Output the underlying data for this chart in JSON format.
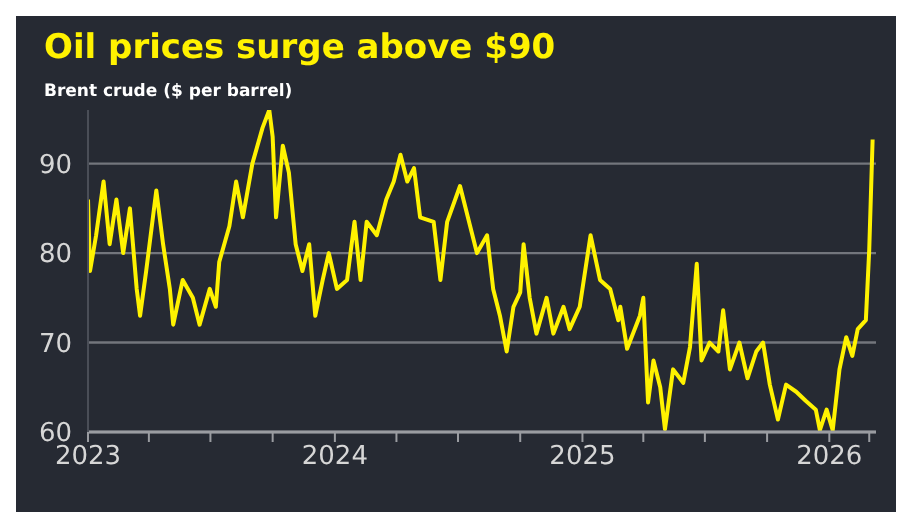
{
  "chart_data": {
    "type": "line",
    "title": "Oil prices surge above $90",
    "subtitle": "Brent crude ($ per barrel)",
    "x": [
      "2023-01-01",
      "2023-01-04",
      "2023-01-13",
      "2023-01-24",
      "2023-02-02",
      "2023-02-12",
      "2023-02-22",
      "2023-03-04",
      "2023-03-14",
      "2023-03-19",
      "2023-03-28",
      "2023-04-07",
      "2023-04-12",
      "2023-04-22",
      "2023-05-02",
      "2023-05-07",
      "2023-05-21",
      "2023-06-05",
      "2023-06-15",
      "2023-06-30",
      "2023-07-09",
      "2023-07-14",
      "2023-07-29",
      "2023-08-08",
      "2023-08-18",
      "2023-09-01",
      "2023-09-16",
      "2023-09-26",
      "2023-10-01",
      "2023-10-06",
      "2023-10-16",
      "2023-10-25",
      "2023-11-04",
      "2023-11-14",
      "2023-11-24",
      "2023-12-03",
      "2023-12-14",
      "2023-12-23",
      "2024-01-04",
      "2024-01-19",
      "2024-01-30",
      "2024-02-08",
      "2024-02-17",
      "2024-03-03",
      "2024-03-17",
      "2024-03-28",
      "2024-04-07",
      "2024-04-17",
      "2024-04-27",
      "2024-05-06",
      "2024-05-26",
      "2024-06-05",
      "2024-06-15",
      "2024-07-04",
      "2024-07-19",
      "2024-07-29",
      "2024-08-13",
      "2024-08-22",
      "2024-09-01",
      "2024-09-11",
      "2024-09-21",
      "2024-10-01",
      "2024-10-06",
      "2024-10-15",
      "2024-10-25",
      "2024-11-09",
      "2024-11-19",
      "2024-12-04",
      "2024-12-13",
      "2024-12-28",
      "2025-01-13",
      "2025-01-27",
      "2025-02-11",
      "2025-02-23",
      "2025-02-26",
      "2025-03-08",
      "2025-03-27",
      "2025-04-01",
      "2025-04-08",
      "2025-04-16",
      "2025-04-26",
      "2025-05-03",
      "2025-05-15",
      "2025-05-30",
      "2025-06-09",
      "2025-06-19",
      "2025-06-26",
      "2025-07-08",
      "2025-07-21",
      "2025-07-28",
      "2025-08-07",
      "2025-08-21",
      "2025-09-02",
      "2025-09-15",
      "2025-09-25",
      "2025-10-05",
      "2025-10-17",
      "2025-10-29",
      "2025-11-13",
      "2025-11-27",
      "2025-12-12",
      "2025-12-18",
      "2025-12-28",
      "2026-01-06",
      "2026-01-16",
      "2026-01-26",
      "2026-02-04",
      "2026-02-12",
      "2026-02-24",
      "2026-03-01",
      "2026-03-06"
    ],
    "series": [
      {
        "color": "#fff200",
        "values": [
          86,
          78,
          82,
          88,
          81,
          86,
          80,
          85,
          76,
          73,
          78,
          84,
          87,
          81,
          76,
          72,
          77,
          75,
          72,
          76,
          74,
          79,
          83,
          88,
          84,
          90,
          94,
          96,
          93,
          84,
          92,
          89,
          81,
          78,
          81,
          73,
          77,
          80,
          76,
          77,
          83.5,
          77,
          83.5,
          82,
          86,
          88,
          91,
          88,
          89.5,
          84,
          83.5,
          77,
          83.5,
          87.5,
          83,
          80,
          82,
          76,
          73,
          69,
          74,
          75.6,
          81,
          75,
          71,
          75,
          71,
          74,
          71.5,
          74,
          82,
          77,
          76,
          72.5,
          74,
          69.3,
          73,
          75,
          63.3,
          68,
          65,
          60.3,
          67,
          65.5,
          69.5,
          78.8,
          68,
          70,
          69,
          73.6,
          67,
          70,
          66,
          69,
          70,
          65.3,
          61.4,
          65.3,
          64.5,
          63.5,
          62.5,
          60.2,
          62.5,
          60.2,
          67,
          70.6,
          68.5,
          71.5,
          72.5,
          80.4,
          92.7
        ]
      }
    ],
    "xlim": [
      "2023-01-01",
      "2026-03-11"
    ],
    "xticks": [
      {
        "value": "2023-01-01",
        "label": "2023"
      },
      {
        "value": "2023-04-01",
        "label": null
      },
      {
        "value": "2023-07-01",
        "label": null
      },
      {
        "value": "2023-10-01",
        "label": null
      },
      {
        "value": "2024-01-01",
        "label": "2024"
      },
      {
        "value": "2024-04-01",
        "label": null
      },
      {
        "value": "2024-07-01",
        "label": null
      },
      {
        "value": "2024-10-01",
        "label": null
      },
      {
        "value": "2025-01-01",
        "label": "2025"
      },
      {
        "value": "2025-04-01",
        "label": null
      },
      {
        "value": "2025-07-01",
        "label": null
      },
      {
        "value": "2025-10-01",
        "label": null
      },
      {
        "value": "2026-01-01",
        "label": "2026"
      },
      {
        "value": "2026-03-01",
        "label": null
      }
    ],
    "ylim": [
      60,
      96
    ],
    "yticks": [
      60,
      70,
      80,
      90
    ],
    "grid": "y",
    "legend": false,
    "marker": "none",
    "line_style": "solid"
  }
}
